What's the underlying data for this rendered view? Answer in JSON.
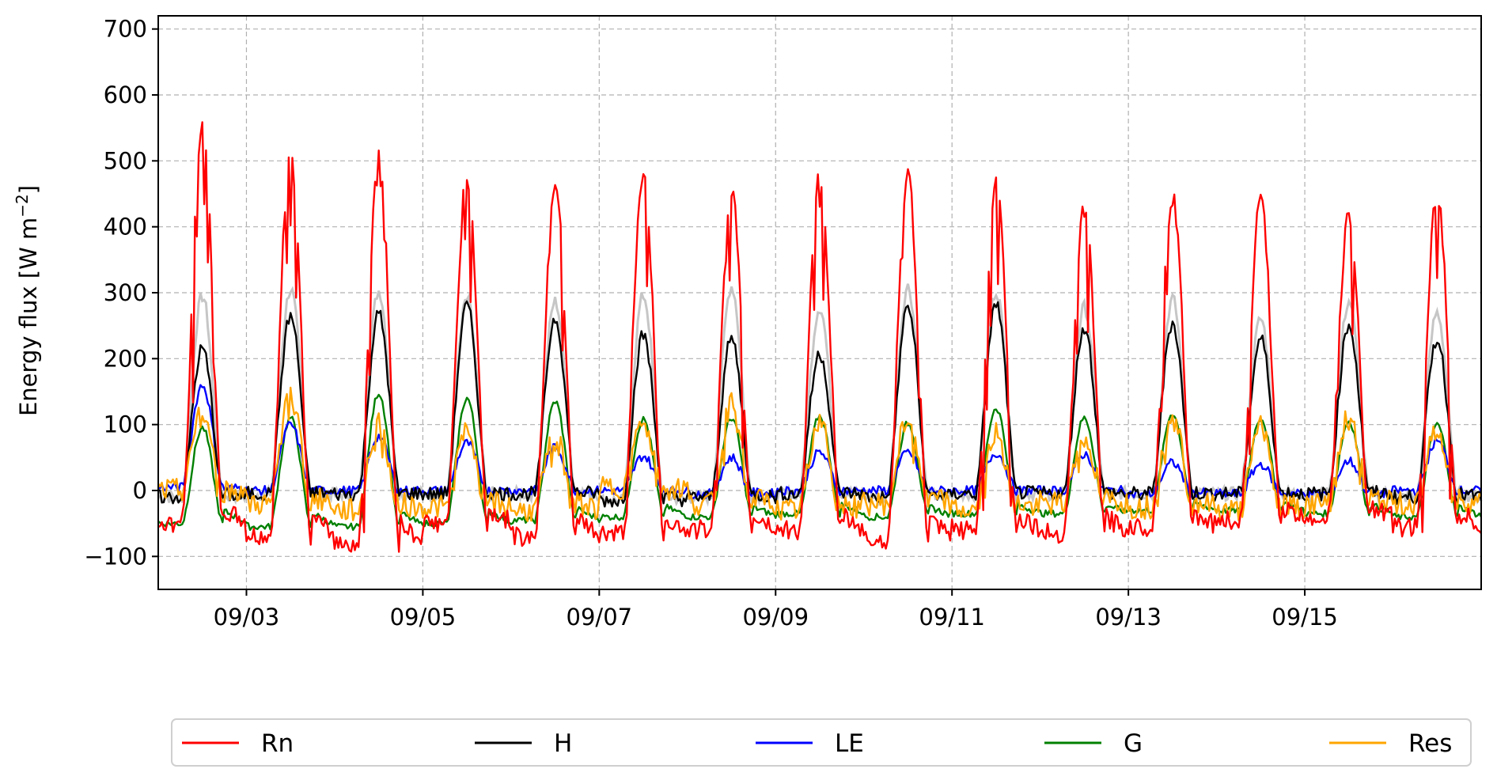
{
  "chart_data": {
    "type": "line",
    "xlabel": "",
    "ylabel": "Energy flux [W m",
    "ylabel_sup": "−2",
    "ylabel_end": "]",
    "ylim": [
      -150,
      720
    ],
    "yticks": [
      -100,
      0,
      100,
      200,
      300,
      400,
      500,
      600,
      700
    ],
    "ytick_labels": [
      "−100",
      "0",
      "100",
      "200",
      "300",
      "400",
      "500",
      "600",
      "700"
    ],
    "x_range_days": [
      "2023-09-02 00:00",
      "2023-09-17 00:00"
    ],
    "xticks": [
      "09/03",
      "09/05",
      "09/07",
      "09/09",
      "09/11",
      "09/13",
      "09/15"
    ],
    "xtick_days": [
      3,
      5,
      7,
      9,
      11,
      13,
      15
    ],
    "x_start_day": 2.0,
    "x_end_day": 17.0,
    "grid": true,
    "legend_position": "bottom",
    "days": [
      2,
      3,
      4,
      5,
      6,
      7,
      8,
      9,
      10,
      11,
      12,
      13,
      14,
      15,
      16
    ],
    "series": [
      {
        "name": "Rn",
        "color": "#ff0000",
        "peaks": [
          548,
          513,
          505,
          475,
          465,
          480,
          452,
          478,
          476,
          470,
          428,
          446,
          437,
          418,
          452
        ],
        "night": [
          -50,
          -70,
          -80,
          -50,
          -70,
          -65,
          -60,
          -60,
          -75,
          -60,
          -65,
          -55,
          -45,
          -40,
          -55
        ]
      },
      {
        "name": "H",
        "color": "#000000",
        "peaks": [
          215,
          265,
          268,
          280,
          262,
          236,
          230,
          208,
          279,
          283,
          248,
          255,
          230,
          252,
          230
        ],
        "night": [
          -10,
          -5,
          -5,
          -5,
          -5,
          -15,
          -10,
          -5,
          -10,
          -5,
          -5,
          -5,
          -5,
          -5,
          -10
        ]
      },
      {
        "name": "LE",
        "color": "#0000ff",
        "peaks": [
          160,
          100,
          82,
          72,
          65,
          52,
          50,
          58,
          58,
          57,
          55,
          42,
          40,
          45,
          75
        ],
        "night": [
          5,
          0,
          0,
          0,
          0,
          0,
          -5,
          0,
          0,
          0,
          0,
          -5,
          -5,
          -5,
          0
        ]
      },
      {
        "name": "G",
        "color": "#008000",
        "peaks": [
          95,
          110,
          148,
          140,
          135,
          108,
          110,
          113,
          102,
          125,
          110,
          117,
          110,
          105,
          100
        ],
        "night": [
          -50,
          -55,
          -55,
          -50,
          -45,
          -40,
          -40,
          -35,
          -40,
          -35,
          -35,
          -30,
          -30,
          -35,
          -40
        ]
      },
      {
        "name": "Res",
        "color": "#ffa500",
        "peaks": [
          125,
          145,
          100,
          90,
          80,
          100,
          130,
          110,
          110,
          85,
          80,
          120,
          100,
          115,
          90
        ],
        "night": [
          0,
          -20,
          -30,
          -25,
          -30,
          5,
          -20,
          -30,
          -20,
          -30,
          -20,
          -25,
          -30,
          -20,
          -20
        ]
      }
    ],
    "uncertainty_band": {
      "series": "H",
      "color": "#c0c0c0",
      "peaks_extra": [
        80,
        40,
        35,
        10,
        25,
        60,
        80,
        70,
        30,
        20,
        30,
        35,
        30,
        35,
        40
      ]
    }
  }
}
